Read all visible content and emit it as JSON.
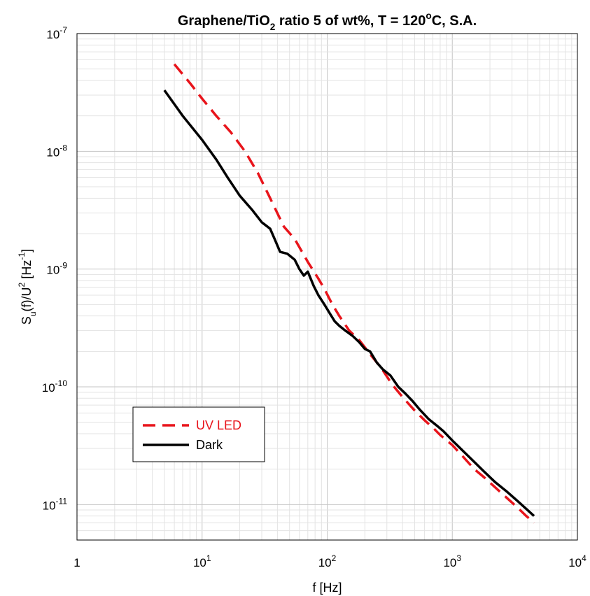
{
  "chart_data": {
    "type": "line",
    "title": {
      "parts": [
        {
          "text": "Graphene/TiO",
          "sub": false
        },
        {
          "text": "2",
          "sub": true
        },
        {
          "text": " ratio 5 of wt%, T = 120",
          "sub": false
        },
        {
          "text": "o",
          "sup": true
        },
        {
          "text": "C, S.A.",
          "sub": false
        }
      ]
    },
    "xlabel": "f  [Hz]",
    "ylabel": {
      "parts": [
        {
          "text": "S",
          "sub": false
        },
        {
          "text": "u",
          "sub": true
        },
        {
          "text": "(f)/U",
          "sub": false
        },
        {
          "text": "2",
          "sup": true
        },
        {
          "text": "  [Hz",
          "sub": false
        },
        {
          "text": "-1",
          "sup": true
        },
        {
          "text": "]",
          "sub": false
        }
      ]
    },
    "x_scale": "log",
    "y_scale": "log",
    "xlim": [
      1,
      10000
    ],
    "ylim": [
      5e-12,
      1e-07
    ],
    "x_ticks": [
      {
        "value": 1,
        "base": "1",
        "exp": ""
      },
      {
        "value": 10,
        "base": "10",
        "exp": "1"
      },
      {
        "value": 100,
        "base": "10",
        "exp": "2"
      },
      {
        "value": 1000,
        "base": "10",
        "exp": "3"
      },
      {
        "value": 10000,
        "base": "10",
        "exp": "4"
      }
    ],
    "y_ticks": [
      {
        "value": 1e-11,
        "base": "10",
        "exp": "-11"
      },
      {
        "value": 1e-10,
        "base": "10",
        "exp": "-10"
      },
      {
        "value": 1e-09,
        "base": "10",
        "exp": "-9"
      },
      {
        "value": 1e-08,
        "base": "10",
        "exp": "-8"
      },
      {
        "value": 1e-07,
        "base": "10",
        "exp": "-7"
      }
    ],
    "grid": true,
    "legend_position": "lower-left",
    "series": [
      {
        "name": "UV LED",
        "color": "#e8141b",
        "style": "dashed",
        "x": [
          6,
          8,
          10,
          13,
          17,
          22,
          28,
          35,
          45,
          55,
          70,
          85,
          95,
          110,
          125,
          150,
          180,
          220,
          270,
          330,
          400,
          500,
          600,
          700,
          800,
          1000,
          1200,
          1500,
          1800,
          2200,
          2700,
          3300,
          3900,
          4500
        ],
        "y": [
          5.5e-08,
          3.8e-08,
          2.8e-08,
          2e-08,
          1.45e-08,
          1e-08,
          6.5e-09,
          4e-09,
          2.3e-09,
          1.8e-09,
          1.15e-09,
          8.3e-10,
          6.8e-10,
          5e-10,
          4e-10,
          3e-10,
          2.5e-10,
          1.9e-10,
          1.45e-10,
          1.05e-10,
          8.2e-11,
          6.3e-11,
          5.2e-11,
          4.5e-11,
          3.9e-11,
          3.2e-11,
          2.6e-11,
          2e-11,
          1.7e-11,
          1.4e-11,
          1.15e-11,
          9.5e-12,
          8e-12,
          7e-12
        ]
      },
      {
        "name": "Dark",
        "color": "#000000",
        "style": "solid",
        "x": [
          5,
          7,
          10,
          13,
          16,
          20,
          25,
          30,
          35,
          38,
          42,
          48,
          55,
          60,
          65,
          70,
          78,
          85,
          95,
          105,
          115,
          125,
          140,
          160,
          180,
          200,
          220,
          250,
          280,
          320,
          370,
          420,
          480,
          550,
          650,
          750,
          850,
          1000,
          1200,
          1500,
          1800,
          2200,
          2700,
          3300,
          3900,
          4500
        ],
        "y": [
          3.3e-08,
          2e-08,
          1.25e-08,
          8.5e-09,
          6e-09,
          4.2e-09,
          3.2e-09,
          2.5e-09,
          2.2e-09,
          1.8e-09,
          1.4e-09,
          1.35e-09,
          1.2e-09,
          1e-09,
          8.8e-10,
          9.5e-10,
          7.2e-10,
          6e-10,
          5e-10,
          4.2e-10,
          3.6e-10,
          3.3e-10,
          3e-10,
          2.7e-10,
          2.4e-10,
          2.1e-10,
          2e-10,
          1.6e-10,
          1.4e-10,
          1.25e-10,
          1e-10,
          8.8e-11,
          7.6e-11,
          6.4e-11,
          5.3e-11,
          4.7e-11,
          4.2e-11,
          3.5e-11,
          2.9e-11,
          2.3e-11,
          1.9e-11,
          1.55e-11,
          1.3e-11,
          1.08e-11,
          9.2e-12,
          8e-12
        ]
      }
    ]
  }
}
